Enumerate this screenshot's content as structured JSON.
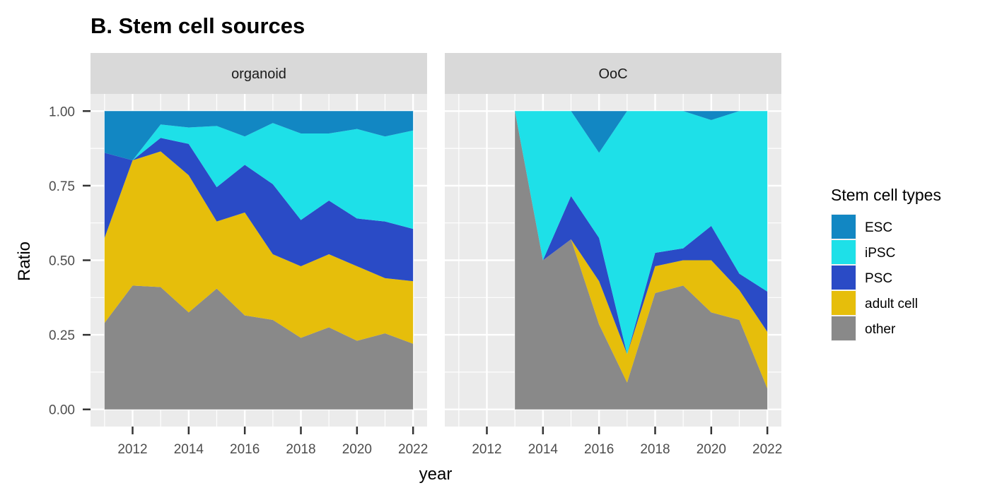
{
  "chart_data": {
    "type": "area",
    "title": "B. Stem cell sources",
    "xlabel": "year",
    "ylabel": "Ratio",
    "xlim": [
      2010.5,
      2022.5
    ],
    "ylim": [
      -0.0575,
      1.0575
    ],
    "x_ticks": [
      2012,
      2014,
      2016,
      2018,
      2020,
      2022
    ],
    "x_tick_labels": [
      "2012",
      "2014",
      "2016",
      "2018",
      "2020",
      "2022"
    ],
    "y_ticks": [
      0,
      0.25,
      0.5,
      0.75,
      1.0
    ],
    "y_tick_labels": [
      "0.00",
      "0.25",
      "0.50",
      "0.75",
      "1.00"
    ],
    "grid": true,
    "stacked": true,
    "legend": {
      "title": "Stem cell types",
      "position": "right",
      "entries": [
        "ESC",
        "iPSC",
        "PSC",
        "adult cell",
        "other"
      ]
    },
    "colors": {
      "ESC": "#1287C3",
      "iPSC": "#1EE0E8",
      "PSC": "#2A4BC6",
      "adult cell": "#E6BE0B",
      "other": "#898989"
    },
    "panels": [
      {
        "strip": "organoid",
        "x": [
          2011,
          2012,
          2013,
          2014,
          2015,
          2016,
          2017,
          2018,
          2019,
          2020,
          2021,
          2022
        ],
        "series": [
          {
            "name": "other",
            "values": [
              0.29,
              0.415,
              0.41,
              0.325,
              0.405,
              0.315,
              0.3,
              0.24,
              0.275,
              0.23,
              0.255,
              0.22
            ]
          },
          {
            "name": "adult cell",
            "values": [
              0.285,
              0.42,
              0.455,
              0.46,
              0.225,
              0.345,
              0.22,
              0.24,
              0.245,
              0.25,
              0.185,
              0.21
            ]
          },
          {
            "name": "PSC",
            "values": [
              0.285,
              0.0,
              0.045,
              0.105,
              0.115,
              0.16,
              0.235,
              0.155,
              0.18,
              0.16,
              0.19,
              0.175
            ]
          },
          {
            "name": "iPSC",
            "values": [
              0.0,
              0.0,
              0.045,
              0.055,
              0.205,
              0.095,
              0.205,
              0.29,
              0.225,
              0.3,
              0.285,
              0.33
            ]
          },
          {
            "name": "ESC",
            "values": [
              0.14,
              0.165,
              0.045,
              0.055,
              0.05,
              0.085,
              0.04,
              0.075,
              0.075,
              0.06,
              0.085,
              0.065
            ]
          }
        ]
      },
      {
        "strip": "OoC",
        "x": [
          2013,
          2014,
          2015,
          2016,
          2017,
          2018,
          2019,
          2020,
          2021,
          2022
        ],
        "series": [
          {
            "name": "other",
            "values": [
              1.0,
              0.5,
              0.57,
              0.285,
              0.09,
              0.39,
              0.415,
              0.325,
              0.3,
              0.07
            ]
          },
          {
            "name": "adult cell",
            "values": [
              0.0,
              0.0,
              0.0,
              0.145,
              0.095,
              0.09,
              0.085,
              0.175,
              0.1,
              0.19
            ]
          },
          {
            "name": "PSC",
            "values": [
              0.0,
              0.0,
              0.145,
              0.145,
              0.0,
              0.045,
              0.04,
              0.115,
              0.055,
              0.135
            ]
          },
          {
            "name": "iPSC",
            "values": [
              0.0,
              0.5,
              0.285,
              0.285,
              0.815,
              0.475,
              0.46,
              0.355,
              0.545,
              0.605
            ]
          },
          {
            "name": "ESC",
            "values": [
              0.0,
              0.0,
              0.0,
              0.14,
              0.0,
              0.0,
              0.0,
              0.03,
              0.0,
              0.0
            ]
          }
        ]
      }
    ]
  }
}
